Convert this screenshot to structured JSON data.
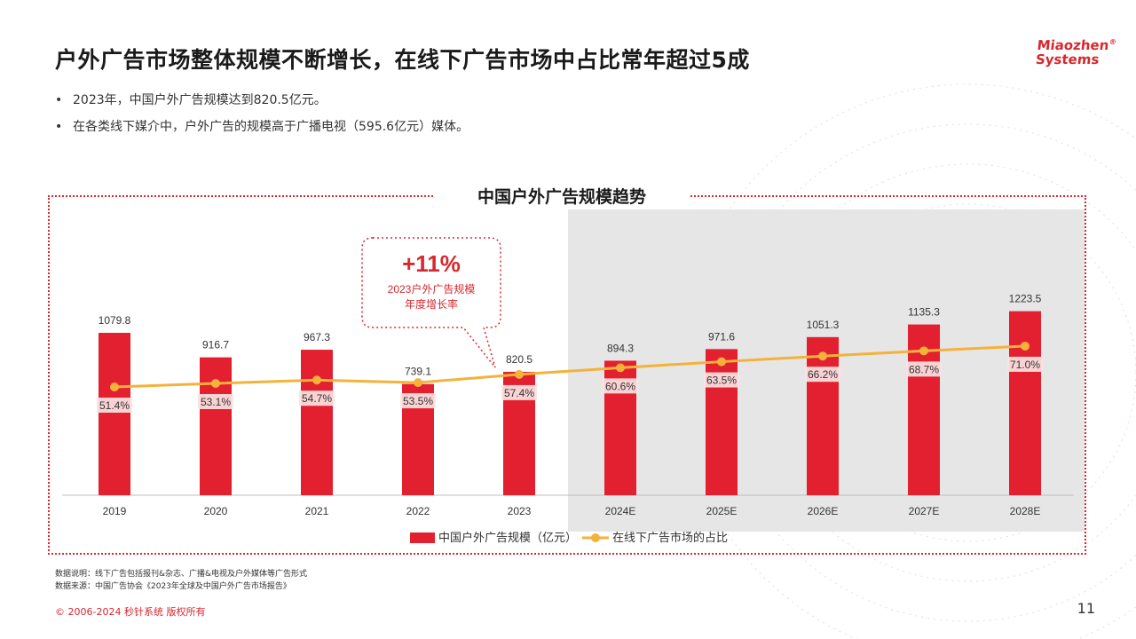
{
  "header": {
    "title": "户外广告市场整体规模不断增长，在线下广告市场中占比常年超过5成",
    "logo_line1": "Miaozhen",
    "logo_line2": "Systems",
    "logo_mark": "®"
  },
  "bullets": [
    "2023年，中国户外广告规模达到820.5亿元。",
    "在各类线下媒介中，户外广告的规模高于广播电视（595.6亿元）媒体。"
  ],
  "callout": {
    "value": "+11%",
    "line1": "2023户外广告规模",
    "line2": "年度增长率"
  },
  "chart_data": {
    "type": "bar",
    "title": "中国户外广告规模趋势",
    "categories": [
      "2019",
      "2020",
      "2021",
      "2022",
      "2023",
      "2024E",
      "2025E",
      "2026E",
      "2027E",
      "2028E"
    ],
    "forecast_from": "2024E",
    "series": [
      {
        "name": "中国户外广告规模（亿元）",
        "type": "bar",
        "values": [
          1079.8,
          916.7,
          967.3,
          739.1,
          820.5,
          894.3,
          971.6,
          1051.3,
          1135.3,
          1223.5
        ],
        "labels": [
          "1079.8",
          "916.7",
          "967.3",
          "739.1",
          "820.5",
          "894.3",
          "971.6",
          "1051.3",
          "1135.3",
          "1223.5"
        ]
      },
      {
        "name": "在线下广告市场的占比",
        "type": "line",
        "values": [
          51.4,
          53.1,
          54.7,
          53.5,
          57.4,
          60.6,
          63.5,
          66.2,
          68.7,
          71.0
        ],
        "labels": [
          "51.4%",
          "53.1%",
          "54.7%",
          "53.5%",
          "57.4%",
          "60.6%",
          "63.5%",
          "66.2%",
          "68.7%",
          "71.0%"
        ]
      }
    ],
    "y_bar_range": [
      0,
      1300
    ],
    "legend_position": "bottom-center",
    "colors": {
      "bar": "#e2202f",
      "line": "#f4b23b",
      "forecast_bg": "#e6e6e6",
      "accent": "#d7282f"
    }
  },
  "notes": {
    "line1": "数据说明：线下广告包括报刊&杂志、广播&电视及户外媒体等广告形式",
    "line2": "数据来源：中国广告协会《2023年全球及中国户外广告市场报告》"
  },
  "footer": {
    "copyright": "© 2006-2024 秒针系统 版权所有",
    "page_number": "11"
  }
}
